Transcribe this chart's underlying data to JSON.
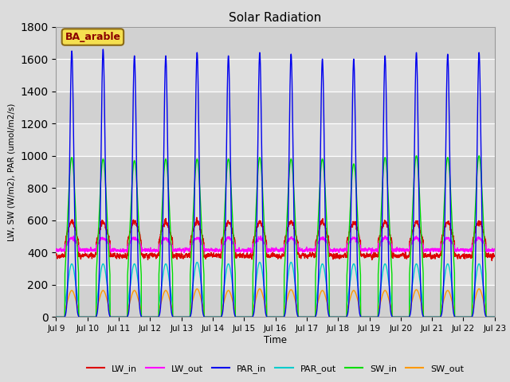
{
  "title": "Solar Radiation",
  "ylabel": "LW, SW (W/m2), PAR (umol/m2/s)",
  "xlabel": "Time",
  "ylim": [
    0,
    1800
  ],
  "yticks": [
    0,
    200,
    400,
    600,
    800,
    1000,
    1200,
    1400,
    1600,
    1800
  ],
  "xtick_labels": [
    "Jul 9",
    "Jul 10",
    "Jul 11",
    "Jul 12",
    "Jul 13",
    "Jul 14",
    "Jul 15",
    "Jul 16",
    "Jul 17",
    "Jul 18",
    "Jul 19",
    "Jul 20",
    "Jul 21",
    "Jul 22",
    "Jul 23"
  ],
  "annotation_text": "BA_arable",
  "annotation_bg": "#f5e050",
  "annotation_fg": "#8b0000",
  "annotation_border": "#8b6914",
  "plot_bg": "#dcdcdc",
  "fig_bg": "#dcdcdc",
  "series": {
    "LW_in": {
      "color": "#dd0000",
      "lw": 1.0
    },
    "LW_out": {
      "color": "#ff00ff",
      "lw": 1.0
    },
    "PAR_in": {
      "color": "#0000ee",
      "lw": 1.0
    },
    "PAR_out": {
      "color": "#00cccc",
      "lw": 1.0
    },
    "SW_in": {
      "color": "#00dd00",
      "lw": 1.0
    },
    "SW_out": {
      "color": "#ff9900",
      "lw": 1.0
    }
  },
  "LW_in_night": 380,
  "LW_in_day_peak": 590,
  "LW_out_night": 415,
  "LW_out_day_peak": 490,
  "PAR_in_peaks": [
    1650,
    1660,
    1620,
    1620,
    1640,
    1620,
    1640,
    1630,
    1600,
    1600,
    1620,
    1640,
    1630,
    1640
  ],
  "PAR_out_peaks": [
    330,
    330,
    330,
    330,
    340,
    330,
    340,
    340,
    330,
    330,
    330,
    330,
    330,
    330
  ],
  "SW_in_peaks": [
    990,
    980,
    970,
    980,
    980,
    980,
    990,
    980,
    980,
    950,
    990,
    1000,
    990,
    1000
  ],
  "SW_out_peaks": [
    165,
    165,
    165,
    165,
    175,
    165,
    175,
    170,
    165,
    165,
    165,
    170,
    165,
    175
  ]
}
